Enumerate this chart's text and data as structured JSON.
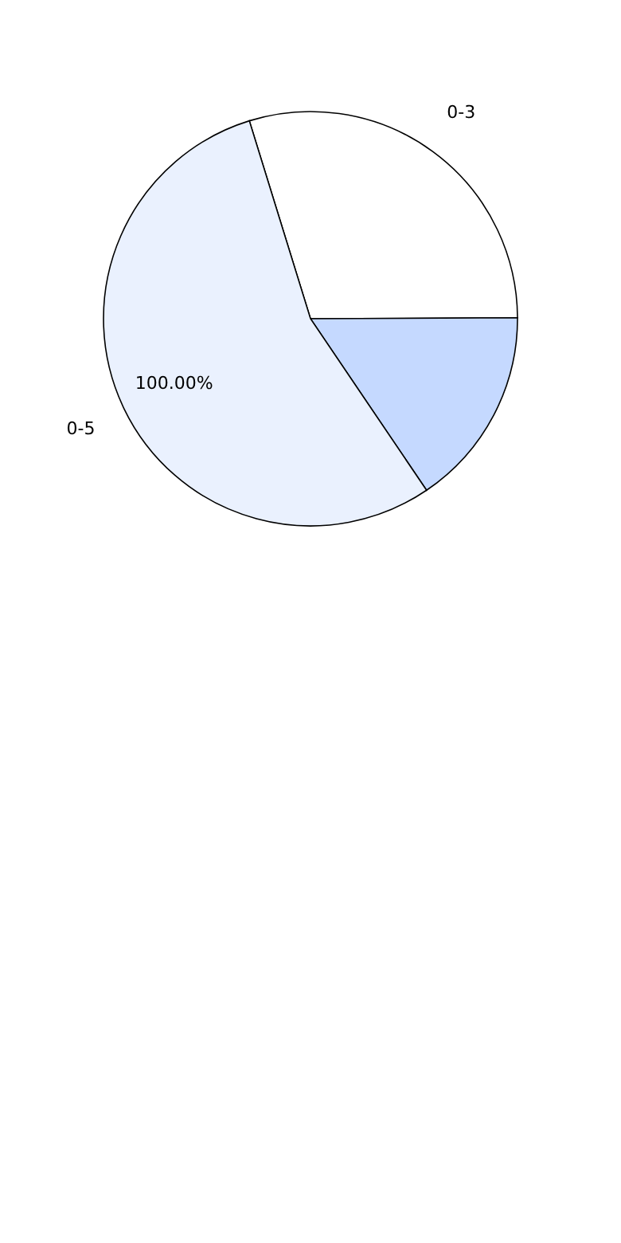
{
  "chart_data": {
    "type": "pie",
    "categories": [
      "0-3",
      null,
      "0-5"
    ],
    "values": [
      29.7,
      15.6,
      54.7
    ],
    "colors": [
      "#ffffff",
      "#c5d9ff",
      "#eaf1fe"
    ],
    "annotations": [
      "100.00%"
    ],
    "legend": false
  }
}
